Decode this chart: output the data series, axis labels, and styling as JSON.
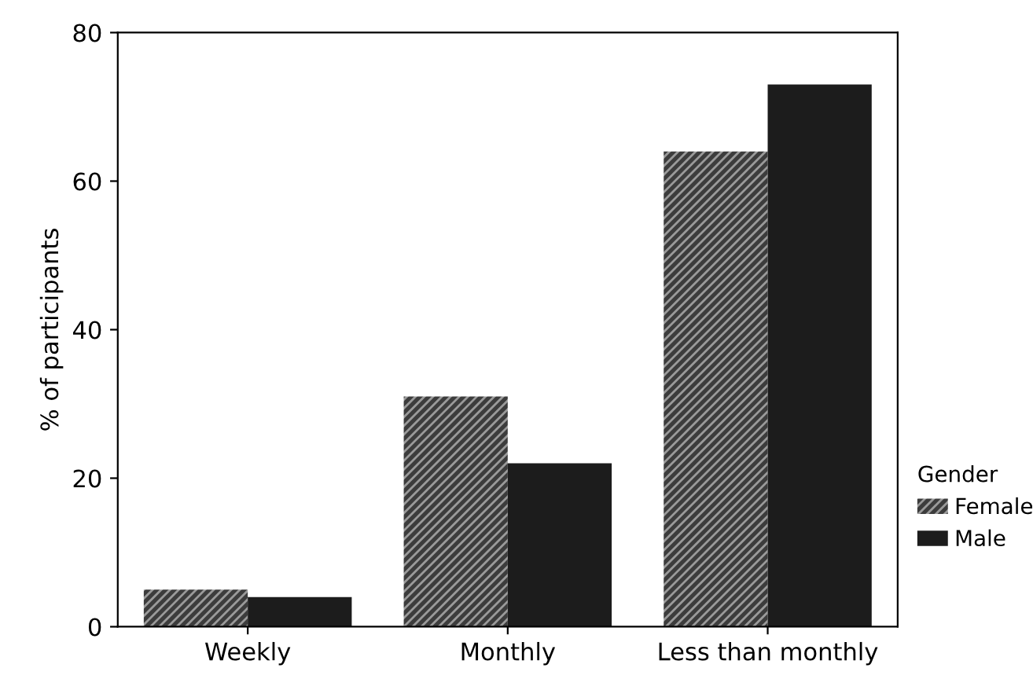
{
  "chart_data": {
    "type": "bar",
    "ylabel": "% of participants",
    "legend_title": "Gender",
    "categories": [
      "Weekly",
      "Monthly",
      "Less than monthly"
    ],
    "series": [
      {
        "name": "Female",
        "color": "#3c3c3c",
        "values": [
          5,
          31,
          64
        ]
      },
      {
        "name": "Male",
        "color": "#1c1c1c",
        "values": [
          4,
          22,
          73
        ]
      }
    ],
    "ylim": [
      0,
      80
    ],
    "yticks": [
      0,
      20,
      40,
      60,
      80
    ],
    "grid": false,
    "legend": "right"
  }
}
